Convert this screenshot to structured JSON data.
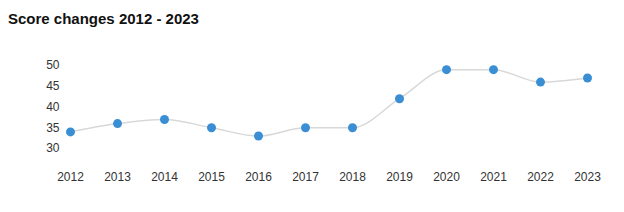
{
  "chart_data": {
    "type": "line",
    "title": "Score changes 2012 - 2023",
    "categories": [
      "2012",
      "2013",
      "2014",
      "2015",
      "2016",
      "2017",
      "2018",
      "2019",
      "2020",
      "2021",
      "2022",
      "2023"
    ],
    "values": [
      34,
      36,
      37,
      35,
      33,
      35,
      35,
      42,
      49,
      49,
      46,
      47
    ],
    "color": "#3a8fd4",
    "marker": "circle",
    "ylim": [
      30,
      50
    ],
    "yticks": [
      30,
      35,
      40,
      45,
      50
    ],
    "grid": false
  }
}
